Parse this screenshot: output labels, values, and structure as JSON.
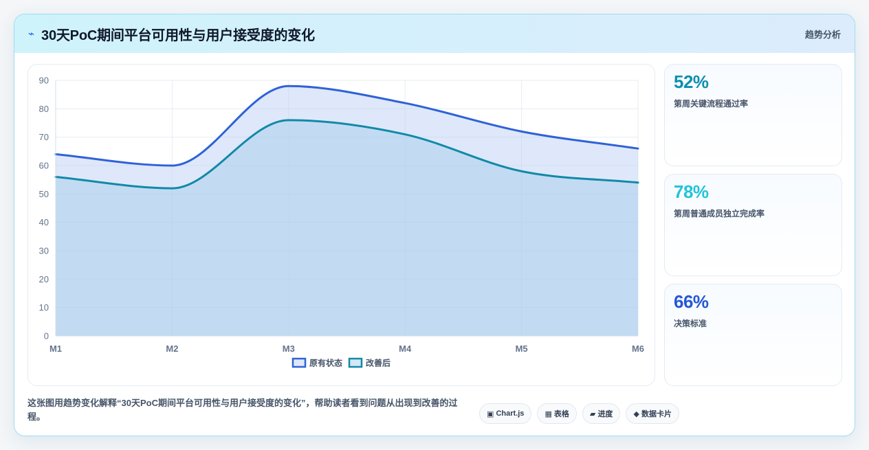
{
  "header": {
    "icon": "bolt-icon",
    "title": "30天PoC期间平台可用性与用户接受度的变化",
    "tag": "趋势分析"
  },
  "stats": [
    {
      "value": "52%",
      "label": "第周关键流程通过率",
      "color": "#0e8fb0"
    },
    {
      "value": "78%",
      "label": "第周普通成员独立完成率",
      "color": "#22c3dc"
    },
    {
      "value": "66%",
      "label": "决策标准",
      "color": "#2557d6"
    }
  ],
  "description": "这张图用趋势变化解释“30天PoC期间平台可用性与用户接受度的变化”，帮助读者看到问题从出现到改善的过程。",
  "chips": [
    {
      "icon": "▣",
      "label": "Chart.js"
    },
    {
      "icon": "▦",
      "label": "表格"
    },
    {
      "icon": "▰",
      "label": "进度"
    },
    {
      "icon": "◆",
      "label": "数据卡片"
    }
  ],
  "chart_data": {
    "type": "area",
    "categories": [
      "M1",
      "M2",
      "M3",
      "M4",
      "M5",
      "M6"
    ],
    "ylim": [
      0,
      90
    ],
    "yticks": [
      0,
      10,
      20,
      30,
      40,
      50,
      60,
      70,
      80,
      90
    ],
    "grid": true,
    "legend": "bottom",
    "series": [
      {
        "name": "原有状态",
        "values": [
          64,
          60,
          88,
          82,
          72,
          66
        ],
        "color": "#2f62d6",
        "fill": "rgba(187, 206, 245, 0.48)"
      },
      {
        "name": "改善后",
        "values": [
          56,
          52,
          76,
          71,
          58,
          54
        ],
        "color": "#1289a7",
        "fill": "rgba(160, 203, 236, 0.45)"
      }
    ]
  }
}
